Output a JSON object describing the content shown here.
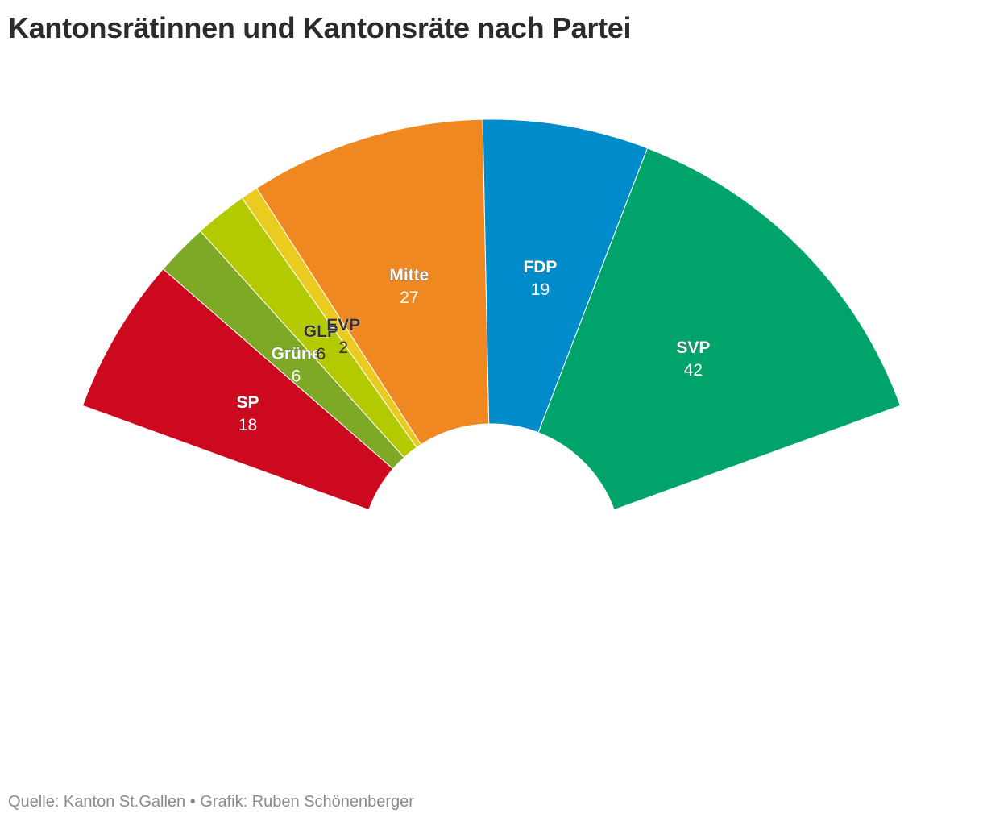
{
  "title": "Kantonsrätinnen und Kantonsräte nach Partei",
  "source": "Quelle: Kanton St.Gallen • Grafik: Ruben Schönenberger",
  "chart_data": {
    "type": "pie",
    "subtype": "parliament-semicircle",
    "total": 120,
    "series": [
      {
        "name": "SP",
        "value": 18,
        "color": "#cd0920",
        "label_color": "#ffffff"
      },
      {
        "name": "Grüne",
        "value": 6,
        "color": "#7da926",
        "label_color": "#ffffff"
      },
      {
        "name": "GLP",
        "value": 6,
        "color": "#b3c900",
        "label_color": "#333333"
      },
      {
        "name": "EVP",
        "value": 2,
        "color": "#eacb20",
        "label_color": "#333333"
      },
      {
        "name": "Mitte",
        "value": 27,
        "color": "#ef8821",
        "label_color": "#ffffff"
      },
      {
        "name": "FDP",
        "value": 19,
        "color": "#008ccb",
        "label_color": "#ffffff"
      },
      {
        "name": "SVP",
        "value": 42,
        "color": "#00a46b",
        "label_color": "#ffffff"
      }
    ]
  }
}
